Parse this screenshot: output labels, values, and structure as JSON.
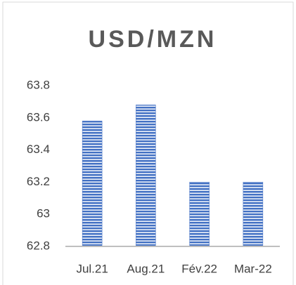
{
  "chart_data": {
    "type": "bar",
    "title": "USD/MZN",
    "categories": [
      "Jul.21",
      "Aug.21",
      "Fév.22",
      "Mar-22"
    ],
    "values": [
      63.58,
      63.68,
      63.2,
      63.2
    ],
    "color": "#4472c4",
    "ylim": [
      62.8,
      63.8
    ],
    "yticks": [
      62.8,
      63,
      63.2,
      63.4,
      63.6,
      63.8
    ],
    "grid": false
  }
}
